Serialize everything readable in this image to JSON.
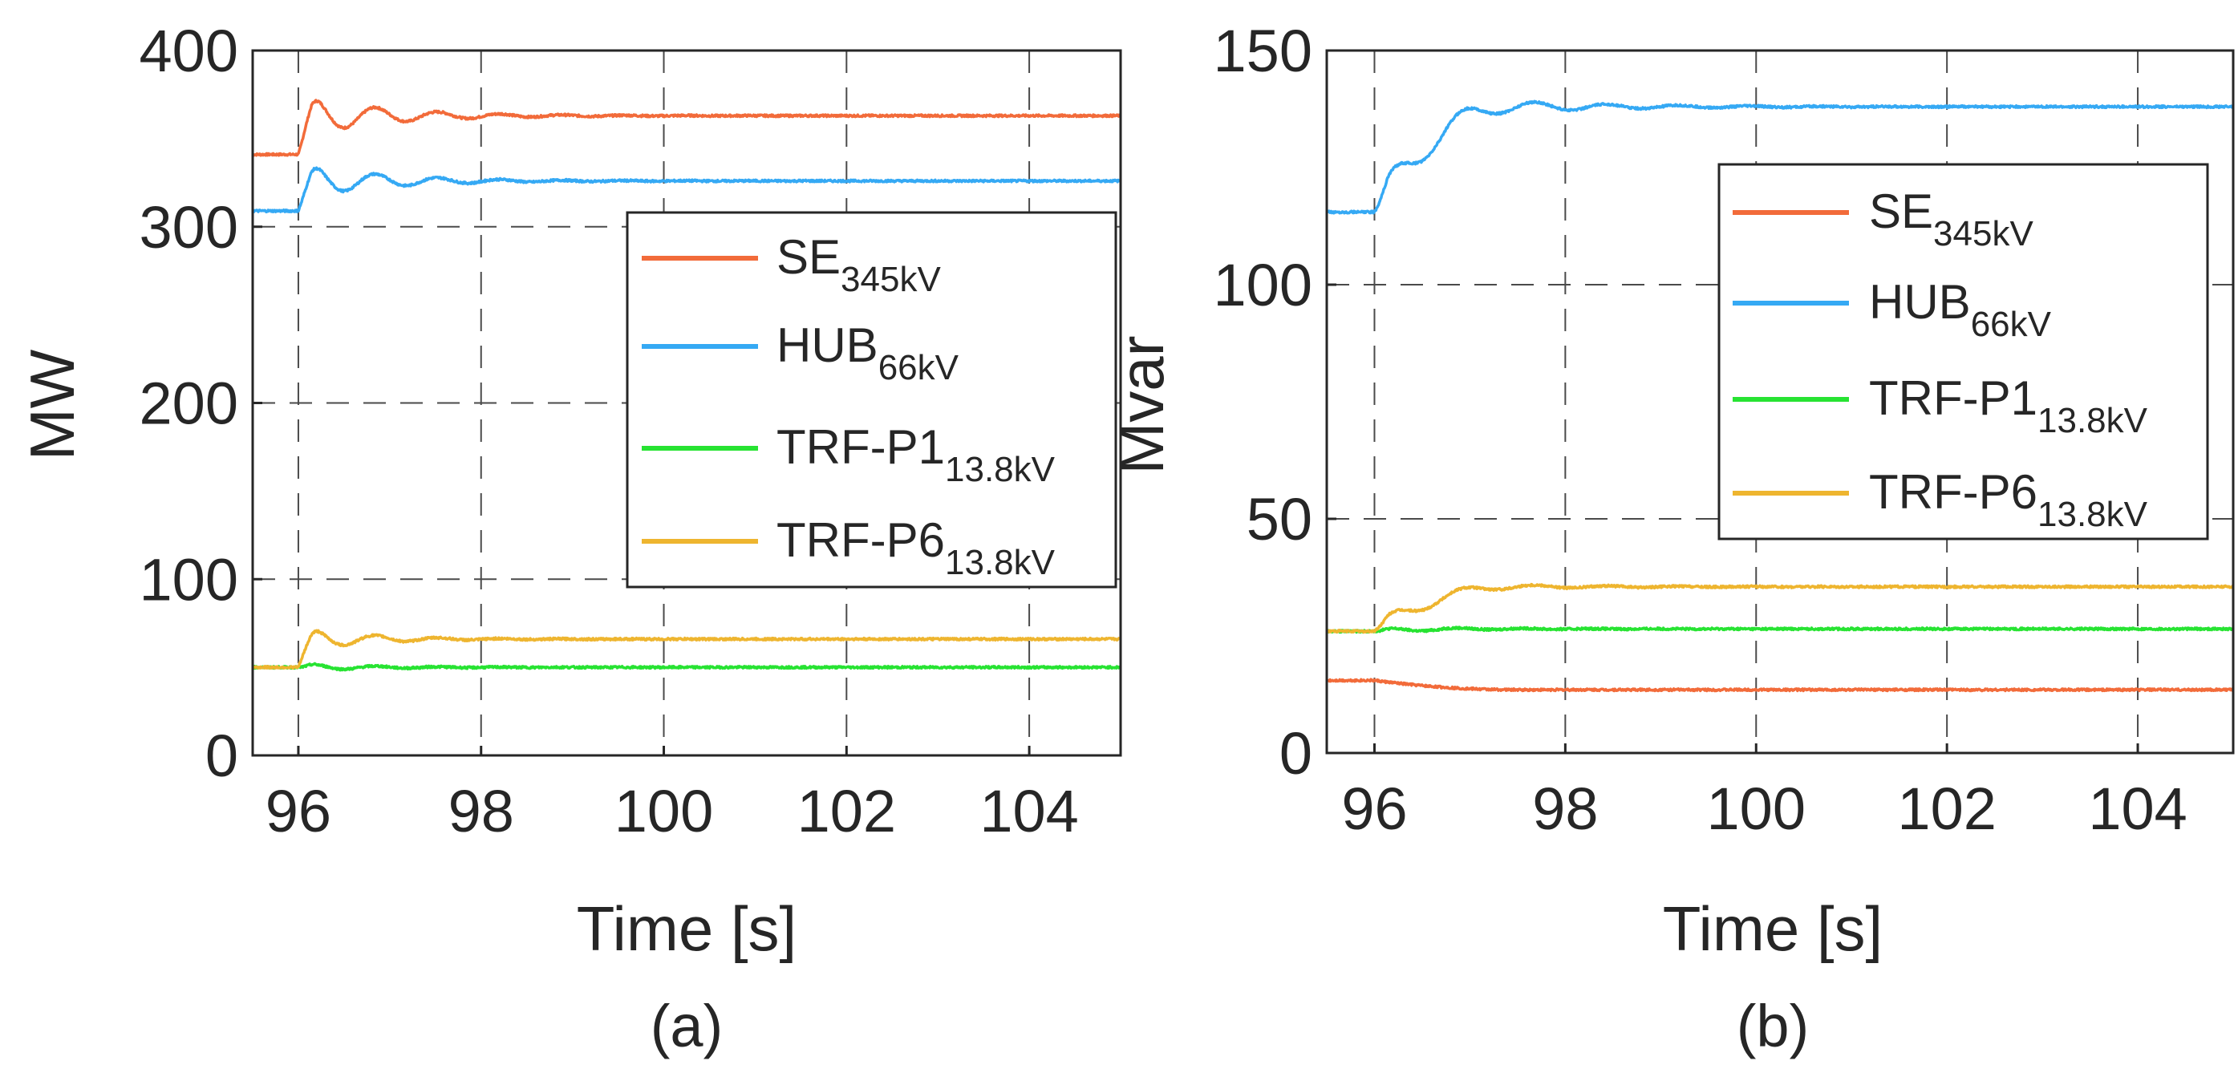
{
  "chart_data": [
    {
      "type": "line",
      "panel_label": "(a)",
      "xlabel": "Time [s]",
      "ylabel": "MW",
      "xlim": [
        95.5,
        105
      ],
      "ylim": [
        0,
        400
      ],
      "xticks": [
        96,
        98,
        100,
        102,
        104
      ],
      "yticks": [
        0,
        100,
        200,
        300,
        400
      ],
      "grid": true,
      "legend_position": "right",
      "series": [
        {
          "id": "se",
          "name": "SE",
          "subscript": "345kV",
          "color": "#f26b3a",
          "step_time": 96,
          "pre": 341,
          "final": 363,
          "amp": 12,
          "period": 0.68,
          "tau": 0.9,
          "ramp": 0.25
        },
        {
          "id": "hub",
          "name": "HUB",
          "subscript": "66kV",
          "color": "#35a9f4",
          "step_time": 96,
          "pre": 309,
          "final": 326,
          "amp": 10,
          "period": 0.68,
          "tau": 0.9,
          "ramp": 0.25
        },
        {
          "id": "p1",
          "name": "TRF-P1",
          "subscript": "13.8kV",
          "color": "#27e332",
          "step_time": 96,
          "pre": 50,
          "final": 50,
          "amp": 2,
          "period": 0.68,
          "tau": 0.8,
          "ramp": 0.2
        },
        {
          "id": "p6",
          "name": "TRF-P6",
          "subscript": "13.8kV",
          "color": "#eeb52f",
          "step_time": 96,
          "pre": 50,
          "final": 66,
          "amp": 7,
          "period": 0.68,
          "tau": 0.7,
          "ramp": 0.25
        }
      ]
    },
    {
      "type": "line",
      "panel_label": "(b)",
      "xlabel": "Time [s]",
      "ylabel": "Mvar",
      "xlim": [
        95.5,
        105
      ],
      "ylim": [
        0,
        150
      ],
      "xticks": [
        96,
        98,
        100,
        102,
        104
      ],
      "yticks": [
        0,
        50,
        100,
        150
      ],
      "grid": true,
      "legend_position": "right",
      "series": [
        {
          "id": "se",
          "name": "SE",
          "subscript": "345kV",
          "color": "#f26b3a",
          "step_time": 96,
          "pre": 15.5,
          "final": 13.5,
          "amp": 0,
          "period": 0.7,
          "tau": 1.5,
          "ramp": 1.5
        },
        {
          "id": "hub",
          "name": "HUB",
          "subscript": "66kV",
          "color": "#35a9f4",
          "step_time": 96,
          "pre": 115.5,
          "final": 138,
          "amp": 4,
          "period": 0.75,
          "tau": 1.2,
          "ramp": 1.4
        },
        {
          "id": "p1",
          "name": "TRF-P1",
          "subscript": "13.8kV",
          "color": "#27e332",
          "step_time": 96,
          "pre": 26,
          "final": 26.5,
          "amp": 0.5,
          "period": 0.7,
          "tau": 1.0,
          "ramp": 1.0
        },
        {
          "id": "p6",
          "name": "TRF-P6",
          "subscript": "13.8kV",
          "color": "#eeb52f",
          "step_time": 96,
          "pre": 26,
          "final": 35.5,
          "amp": 2,
          "period": 0.75,
          "tau": 1.0,
          "ramp": 1.4
        }
      ]
    }
  ]
}
